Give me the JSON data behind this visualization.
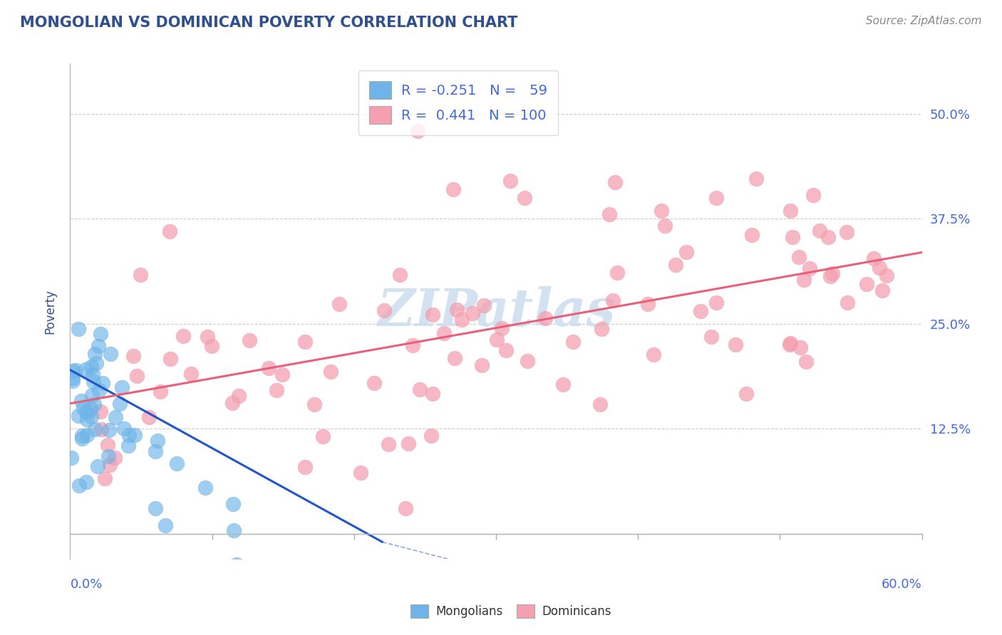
{
  "title": "MONGOLIAN VS DOMINICAN POVERTY CORRELATION CHART",
  "source": "Source: ZipAtlas.com",
  "ylabel": "Poverty",
  "yticks": [
    0.0,
    0.125,
    0.25,
    0.375,
    0.5
  ],
  "ytick_labels": [
    "",
    "12.5%",
    "25.0%",
    "37.5%",
    "50.0%"
  ],
  "xlim": [
    0.0,
    0.6
  ],
  "ylim": [
    -0.03,
    0.56
  ],
  "plot_ylim": [
    0.0,
    0.56
  ],
  "mongolian_R": -0.251,
  "mongolian_N": 59,
  "dominican_R": 0.441,
  "dominican_N": 100,
  "mongolian_scatter_color": "#6EB4E8",
  "dominican_scatter_color": "#F4A0B0",
  "mongolian_line_color": "#2255CC",
  "dominican_line_color": "#E8607A",
  "title_color": "#2F4F8F",
  "axis_color": "#4169E1",
  "legend_R_color": "#FF3366",
  "legend_N_color": "#4169E1",
  "watermark_color": "#CCDDEE",
  "grid_color": "#CCCCCC",
  "background_color": "#FFFFFF",
  "watermark_text": "ZIPatlas",
  "legend_text_color": "#4169E1"
}
